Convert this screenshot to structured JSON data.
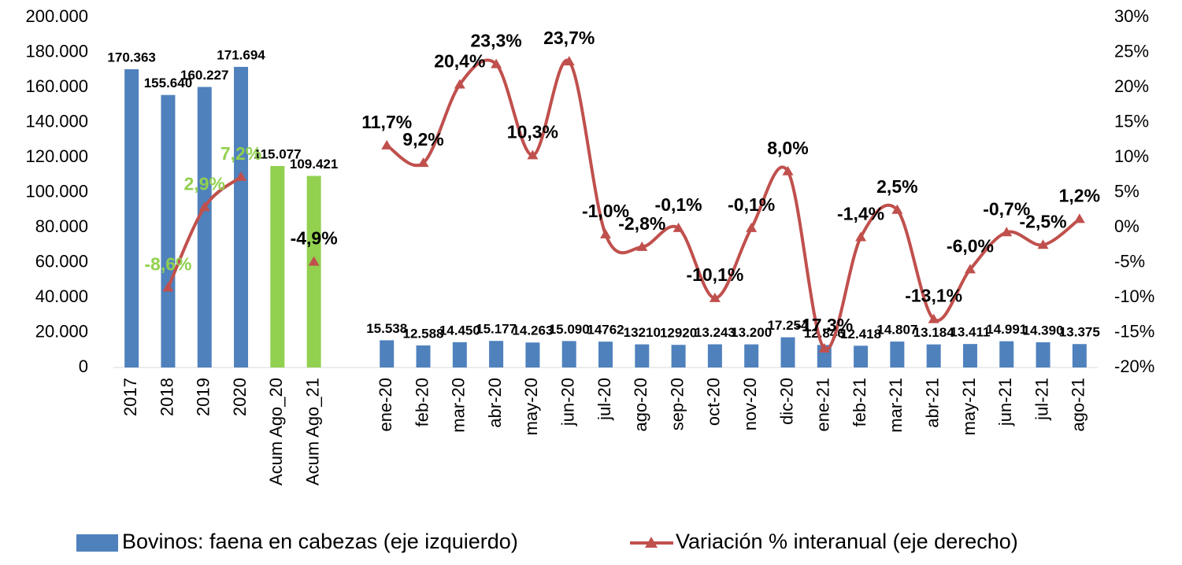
{
  "chart_data": {
    "type": "bar_line",
    "categories": [
      "2017",
      "2018",
      "2019",
      "2020",
      "Acum Ago_20",
      "Acum Ago_21",
      null,
      "ene-20",
      "feb-20",
      "mar-20",
      "abr-20",
      "may-20",
      "jun-20",
      "jul-20",
      "ago-20",
      "sep-20",
      "oct-20",
      "nov-20",
      "dic-20",
      "ene-21",
      "feb-21",
      "mar-21",
      "abr-21",
      "may-21",
      "jun-21",
      "jul-21",
      "ago-21"
    ],
    "series": [
      {
        "name": "Bovinos: faena en cabezas (eje izquierdo)",
        "type": "bar",
        "color": "#4f81bd",
        "colors": [
          "#4f81bd",
          "#4f81bd",
          "#4f81bd",
          "#4f81bd",
          "#92d050",
          "#92d050",
          null,
          "#4f81bd",
          "#4f81bd",
          "#4f81bd",
          "#4f81bd",
          "#4f81bd",
          "#4f81bd",
          "#4f81bd",
          "#4f81bd",
          "#4f81bd",
          "#4f81bd",
          "#4f81bd",
          "#4f81bd",
          "#4f81bd",
          "#4f81bd",
          "#4f81bd",
          "#4f81bd",
          "#4f81bd",
          "#4f81bd",
          "#4f81bd",
          "#4f81bd"
        ],
        "values": [
          170363,
          155640,
          160227,
          171694,
          115077,
          109421,
          null,
          15538,
          12588,
          14450,
          15177,
          14263,
          15090,
          14762,
          13210,
          12920,
          13243,
          13200,
          17254,
          12846,
          12418,
          14807,
          13184,
          13411,
          14991,
          14390,
          13375
        ],
        "value_labels": [
          "170.363",
          "155.640",
          "160.227",
          "171.694",
          "115.077",
          "109.421",
          null,
          "15.538",
          "12.588",
          "14.450",
          "15.177",
          "14.263",
          "15.090",
          "14762",
          "13210",
          "12920",
          "13.243",
          "13.200",
          "17.254",
          "12.846",
          "12.418",
          "14.807",
          "13.184",
          "13.411",
          "14.991",
          "14.390",
          "13.375"
        ]
      },
      {
        "name": "Variación % interanual (eje derecho)",
        "type": "line",
        "axis": "y2",
        "color": "#c0504d",
        "values": [
          null,
          -8.6,
          2.9,
          7.2,
          null,
          -4.9,
          null,
          11.7,
          9.2,
          20.4,
          23.3,
          10.3,
          23.7,
          -1.0,
          -2.8,
          -0.1,
          -10.1,
          -0.1,
          8.0,
          -17.3,
          -1.4,
          2.5,
          -13.1,
          -6.0,
          -0.7,
          -2.5,
          1.2
        ],
        "value_labels": [
          null,
          "-8,6%",
          "2,9%",
          "7,2%",
          null,
          "-4,9%",
          null,
          "11,7%",
          "9,2%",
          "20,4%",
          "23,3%",
          "10,3%",
          "23,7%",
          "-1,0%",
          "-2,8%",
          "-0,1%",
          "-10,1%",
          "-0,1%",
          "8,0%",
          "-17,3%",
          "-1,4%",
          "2,5%",
          "-13,1%",
          "-6,0%",
          "-0,7%",
          "-2,5%",
          "1,2%"
        ],
        "value_label_colors": [
          null,
          "#92d050",
          "#92d050",
          "#92d050",
          null,
          "#000000",
          null,
          "#000000",
          "#000000",
          "#000000",
          "#000000",
          "#000000",
          "#000000",
          "#000000",
          "#000000",
          "#000000",
          "#000000",
          "#000000",
          "#000000",
          "#000000",
          "#000000",
          "#000000",
          "#000000",
          "#000000",
          "#000000",
          "#000000",
          "#000000"
        ]
      }
    ],
    "ylim": [
      0,
      200000
    ],
    "yticks": [
      {
        "value": 0,
        "label": "0"
      },
      {
        "value": 20000,
        "label": "20.000"
      },
      {
        "value": 40000,
        "label": "40.000"
      },
      {
        "value": 60000,
        "label": "60.000"
      },
      {
        "value": 80000,
        "label": "80.000"
      },
      {
        "value": 100000,
        "label": "100.000"
      },
      {
        "value": 120000,
        "label": "120.000"
      },
      {
        "value": 140000,
        "label": "140.000"
      },
      {
        "value": 160000,
        "label": "160.000"
      },
      {
        "value": 180000,
        "label": "180.000"
      },
      {
        "value": 200000,
        "label": "200.000"
      }
    ],
    "y2lim": [
      -20,
      30
    ],
    "y2ticks": [
      {
        "value": -20,
        "label": "-20%"
      },
      {
        "value": -15,
        "label": "-15%"
      },
      {
        "value": -10,
        "label": "-10%"
      },
      {
        "value": -5,
        "label": "-5%"
      },
      {
        "value": 0,
        "label": "0%"
      },
      {
        "value": 5,
        "label": "5%"
      },
      {
        "value": 10,
        "label": "10%"
      },
      {
        "value": 15,
        "label": "15%"
      },
      {
        "value": 20,
        "label": "20%"
      },
      {
        "value": 25,
        "label": "25%"
      },
      {
        "value": 30,
        "label": "30%"
      }
    ],
    "grid": false,
    "legend": "bottom"
  }
}
